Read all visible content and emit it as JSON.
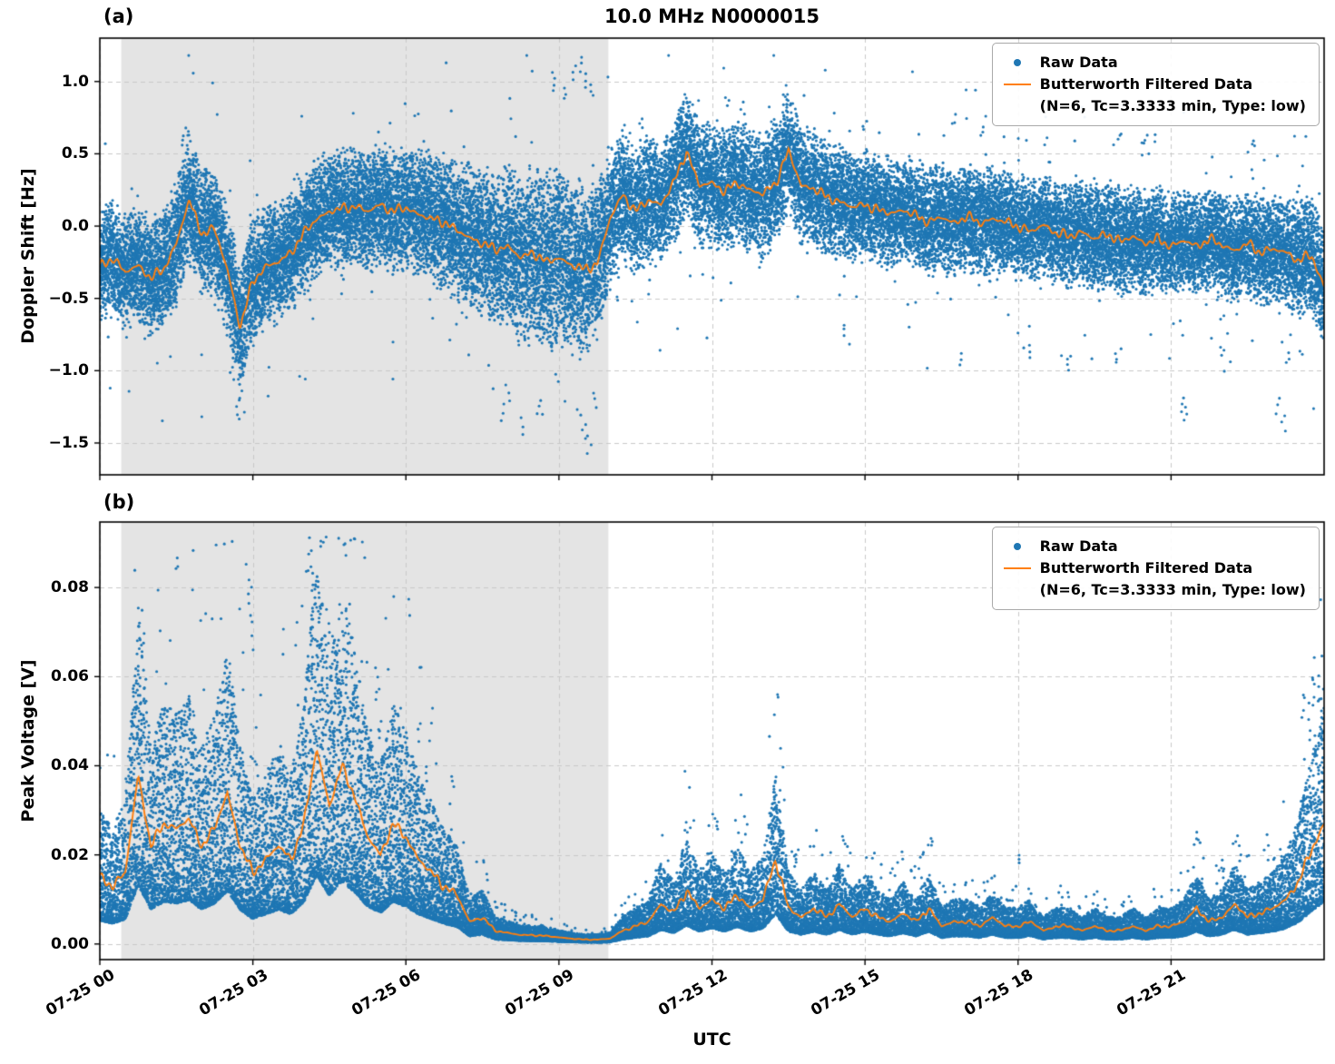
{
  "figure": {
    "title": "10.0 MHz N0000015",
    "xlabel": "UTC",
    "panel_a_label": "(a)",
    "panel_b_label": "(b)",
    "legend": {
      "raw_label": "Raw Data",
      "filtered_label": "Butterworth Filtered Data",
      "filtered_sublabel": "(N=6, Tc=3.3333 min, Type: low)"
    },
    "colors": {
      "raw": "#1f77b4",
      "filtered": "#ff7f0e",
      "shade": "#e4e4e4",
      "grid": "#c9c9c9",
      "axis": "#000000"
    },
    "x_ticks": [
      {
        "hour": 0,
        "label": "07-25 00"
      },
      {
        "hour": 3,
        "label": "07-25 03"
      },
      {
        "hour": 6,
        "label": "07-25 06"
      },
      {
        "hour": 9,
        "label": "07-25 09"
      },
      {
        "hour": 12,
        "label": "07-25 12"
      },
      {
        "hour": 15,
        "label": "07-25 15"
      },
      {
        "hour": 18,
        "label": "07-25 18"
      },
      {
        "hour": 21,
        "label": "07-25 21"
      }
    ]
  },
  "chart_data": [
    {
      "type": "scatter",
      "panel": "a",
      "title": "10.0 MHz N0000015",
      "xlabel": "UTC",
      "ylabel": "Doppler Shift [Hz]",
      "xlim_hours": [
        0,
        24
      ],
      "ylim": [
        -1.72,
        1.3
      ],
      "yticks": [
        {
          "value": 1.0,
          "label": "1.0"
        },
        {
          "value": 0.5,
          "label": "0.5"
        },
        {
          "value": 0.0,
          "label": "0.0"
        },
        {
          "value": -0.5,
          "label": "−0.5"
        },
        {
          "value": -1.0,
          "label": "−1.0"
        },
        {
          "value": -1.5,
          "label": "−1.5"
        }
      ],
      "grid": true,
      "legend_position": "upper right",
      "shade_span_hours": [
        0.42,
        9.97
      ],
      "noise_model": "symmetric",
      "raw_point_count": 36000,
      "line_wiggle_amp": 0.045,
      "series": [
        {
          "name": "Raw Data",
          "type": "scatter",
          "color": "#1f77b4"
        },
        {
          "name": "Butterworth Filtered Data (N=6, Tc=3.3333 min, Type: low)",
          "type": "line",
          "color": "#ff7f0e"
        }
      ],
      "filtered_points_hour_hz": [
        [
          0,
          -0.28
        ],
        [
          0.25,
          -0.22
        ],
        [
          0.5,
          -0.32
        ],
        [
          0.75,
          -0.27
        ],
        [
          1,
          -0.36
        ],
        [
          1.25,
          -0.3
        ],
        [
          1.5,
          -0.12
        ],
        [
          1.75,
          0.18
        ],
        [
          2,
          -0.05
        ],
        [
          2.25,
          -0.02
        ],
        [
          2.5,
          -0.3
        ],
        [
          2.75,
          -0.7
        ],
        [
          3,
          -0.38
        ],
        [
          3.25,
          -0.28
        ],
        [
          3.5,
          -0.25
        ],
        [
          3.75,
          -0.18
        ],
        [
          4,
          -0.05
        ],
        [
          4.25,
          0.05
        ],
        [
          4.5,
          0.1
        ],
        [
          4.75,
          0.12
        ],
        [
          5,
          0.14
        ],
        [
          5.25,
          0.1
        ],
        [
          5.5,
          0.15
        ],
        [
          5.75,
          0.1
        ],
        [
          6,
          0.13
        ],
        [
          6.25,
          0.08
        ],
        [
          6.5,
          0.05
        ],
        [
          6.75,
          0.03
        ],
        [
          7,
          -0.03
        ],
        [
          7.25,
          -0.08
        ],
        [
          7.5,
          -0.12
        ],
        [
          7.75,
          -0.16
        ],
        [
          8,
          -0.14
        ],
        [
          8.25,
          -0.22
        ],
        [
          8.5,
          -0.18
        ],
        [
          8.75,
          -0.25
        ],
        [
          9,
          -0.22
        ],
        [
          9.25,
          -0.27
        ],
        [
          9.5,
          -0.3
        ],
        [
          9.75,
          -0.26
        ],
        [
          10,
          0.05
        ],
        [
          10.25,
          0.22
        ],
        [
          10.5,
          0.1
        ],
        [
          10.75,
          0.18
        ],
        [
          11,
          0.15
        ],
        [
          11.25,
          0.3
        ],
        [
          11.5,
          0.52
        ],
        [
          11.75,
          0.28
        ],
        [
          12,
          0.3
        ],
        [
          12.25,
          0.24
        ],
        [
          12.5,
          0.3
        ],
        [
          12.75,
          0.25
        ],
        [
          13,
          0.22
        ],
        [
          13.25,
          0.3
        ],
        [
          13.5,
          0.52
        ],
        [
          13.75,
          0.28
        ],
        [
          14,
          0.26
        ],
        [
          14.25,
          0.2
        ],
        [
          14.5,
          0.17
        ],
        [
          14.75,
          0.13
        ],
        [
          15,
          0.15
        ],
        [
          15.25,
          0.11
        ],
        [
          15.5,
          0.09
        ],
        [
          15.75,
          0.11
        ],
        [
          16,
          0.07
        ],
        [
          16.25,
          0.03
        ],
        [
          16.5,
          0.06
        ],
        [
          16.75,
          0.02
        ],
        [
          17,
          0.07
        ],
        [
          17.25,
          0.02
        ],
        [
          17.5,
          0.05
        ],
        [
          17.75,
          0.03
        ],
        [
          18,
          0
        ],
        [
          18.25,
          -0.04
        ],
        [
          18.5,
          0.01
        ],
        [
          18.75,
          -0.05
        ],
        [
          19,
          -0.07
        ],
        [
          19.25,
          -0.04
        ],
        [
          19.5,
          -0.09
        ],
        [
          19.75,
          -0.05
        ],
        [
          20,
          -0.11
        ],
        [
          20.25,
          -0.07
        ],
        [
          20.5,
          -0.12
        ],
        [
          20.75,
          -0.09
        ],
        [
          21,
          -0.14
        ],
        [
          21.25,
          -0.1
        ],
        [
          21.5,
          -0.14
        ],
        [
          21.75,
          -0.09
        ],
        [
          22,
          -0.13
        ],
        [
          22.25,
          -0.17
        ],
        [
          22.5,
          -0.12
        ],
        [
          22.75,
          -0.18
        ],
        [
          23,
          -0.16
        ],
        [
          23.25,
          -0.18
        ],
        [
          23.5,
          -0.24
        ],
        [
          23.75,
          -0.2
        ],
        [
          24,
          -0.42
        ]
      ],
      "raw_band_halfwidth_hour_hz": [
        [
          0,
          0.35
        ],
        [
          1,
          0.38
        ],
        [
          2,
          0.42
        ],
        [
          3,
          0.4
        ],
        [
          4,
          0.38
        ],
        [
          5,
          0.38
        ],
        [
          6,
          0.4
        ],
        [
          7,
          0.45
        ],
        [
          8,
          0.52
        ],
        [
          9,
          0.6
        ],
        [
          10,
          0.45
        ],
        [
          11,
          0.4
        ],
        [
          12,
          0.4
        ],
        [
          13,
          0.4
        ],
        [
          14,
          0.38
        ],
        [
          15,
          0.35
        ],
        [
          16,
          0.35
        ],
        [
          17,
          0.35
        ],
        [
          18,
          0.33
        ],
        [
          19,
          0.33
        ],
        [
          20,
          0.35
        ],
        [
          21,
          0.33
        ],
        [
          22,
          0.33
        ],
        [
          23,
          0.35
        ],
        [
          24,
          0.38
        ]
      ],
      "raw_outliers_hour_hz": [
        [
          1.65,
          0.62
        ],
        [
          1.7,
          0.68
        ],
        [
          2.6,
          -1.05
        ],
        [
          2.7,
          -1.3
        ],
        [
          2.75,
          -1.18
        ],
        [
          2.8,
          -0.95
        ],
        [
          7.9,
          -1.35
        ],
        [
          8.0,
          -1.2
        ],
        [
          8.3,
          -1.45
        ],
        [
          8.6,
          -1.3
        ],
        [
          8.9,
          1.02
        ],
        [
          9.1,
          0.95
        ],
        [
          9.3,
          1.1
        ],
        [
          9.45,
          1.17
        ],
        [
          9.5,
          -1.48
        ],
        [
          9.55,
          1.05
        ],
        [
          9.6,
          -1.57
        ],
        [
          9.65,
          0.98
        ],
        [
          9.7,
          -1.25
        ],
        [
          10.6,
          0.75
        ],
        [
          11.4,
          0.85
        ],
        [
          12.3,
          0.9
        ],
        [
          12.6,
          0.85
        ],
        [
          13.4,
          0.92
        ],
        [
          13.5,
          0.88
        ],
        [
          14.6,
          -0.75
        ],
        [
          15.0,
          0.72
        ],
        [
          16.9,
          -0.95
        ],
        [
          17.3,
          0.68
        ],
        [
          18.2,
          -0.9
        ],
        [
          19.0,
          -1.0
        ],
        [
          19.9,
          -0.95
        ],
        [
          20.0,
          0.65
        ],
        [
          20.5,
          0.63
        ],
        [
          21.2,
          -1.28
        ],
        [
          21.3,
          -1.35
        ],
        [
          22.0,
          -0.9
        ],
        [
          22.6,
          0.6
        ],
        [
          23.1,
          -1.3
        ],
        [
          23.2,
          -1.42
        ],
        [
          23.3,
          -0.95
        ]
      ]
    },
    {
      "type": "scatter",
      "panel": "b",
      "xlabel": "UTC",
      "ylabel": "Peak Voltage [V]",
      "xlim_hours": [
        0,
        24
      ],
      "ylim": [
        -0.0035,
        0.0947
      ],
      "yticks": [
        {
          "value": 0.08,
          "label": "0.08"
        },
        {
          "value": 0.06,
          "label": "0.06"
        },
        {
          "value": 0.04,
          "label": "0.04"
        },
        {
          "value": 0.02,
          "label": "0.02"
        },
        {
          "value": 0.0,
          "label": "0.00"
        }
      ],
      "grid": true,
      "legend_position": "upper right",
      "shade_span_hours": [
        0.42,
        9.97
      ],
      "noise_model": "positive",
      "raw_point_count": 30000,
      "line_wiggle_amp": 0.0014,
      "series": [
        {
          "name": "Raw Data",
          "type": "scatter",
          "color": "#1f77b4"
        },
        {
          "name": "Butterworth Filtered Data (N=6, Tc=3.3333 min, Type: low)",
          "type": "line",
          "color": "#ff7f0e"
        }
      ],
      "filtered_points_hour_volts": [
        [
          0,
          0.015
        ],
        [
          0.25,
          0.013
        ],
        [
          0.5,
          0.016
        ],
        [
          0.75,
          0.038
        ],
        [
          1,
          0.022
        ],
        [
          1.25,
          0.027
        ],
        [
          1.5,
          0.026
        ],
        [
          1.75,
          0.028
        ],
        [
          2,
          0.022
        ],
        [
          2.25,
          0.026
        ],
        [
          2.5,
          0.034
        ],
        [
          2.75,
          0.022
        ],
        [
          3,
          0.016
        ],
        [
          3.25,
          0.019
        ],
        [
          3.5,
          0.022
        ],
        [
          3.75,
          0.019
        ],
        [
          4,
          0.027
        ],
        [
          4.25,
          0.044
        ],
        [
          4.5,
          0.031
        ],
        [
          4.75,
          0.04
        ],
        [
          5,
          0.033
        ],
        [
          5.25,
          0.024
        ],
        [
          5.5,
          0.02
        ],
        [
          5.75,
          0.027
        ],
        [
          6,
          0.024
        ],
        [
          6.25,
          0.019
        ],
        [
          6.5,
          0.016
        ],
        [
          6.75,
          0.013
        ],
        [
          7,
          0.011
        ],
        [
          7.25,
          0.005
        ],
        [
          7.5,
          0.006
        ],
        [
          7.75,
          0.003
        ],
        [
          8,
          0.0025
        ],
        [
          8.25,
          0.002
        ],
        [
          8.5,
          0.002
        ],
        [
          8.75,
          0.0018
        ],
        [
          9,
          0.0015
        ],
        [
          9.25,
          0.0012
        ],
        [
          9.5,
          0.001
        ],
        [
          9.75,
          0.001
        ],
        [
          10,
          0.0012
        ],
        [
          10.25,
          0.003
        ],
        [
          10.5,
          0.004
        ],
        [
          10.75,
          0.005
        ],
        [
          11,
          0.009
        ],
        [
          11.25,
          0.007
        ],
        [
          11.5,
          0.012
        ],
        [
          11.75,
          0.008
        ],
        [
          12,
          0.01
        ],
        [
          12.25,
          0.008
        ],
        [
          12.5,
          0.011
        ],
        [
          12.75,
          0.008
        ],
        [
          13,
          0.01
        ],
        [
          13.25,
          0.019
        ],
        [
          13.5,
          0.008
        ],
        [
          13.75,
          0.006
        ],
        [
          14,
          0.008
        ],
        [
          14.25,
          0.006
        ],
        [
          14.5,
          0.009
        ],
        [
          14.75,
          0.006
        ],
        [
          15,
          0.008
        ],
        [
          15.25,
          0.006
        ],
        [
          15.5,
          0.005
        ],
        [
          15.75,
          0.007
        ],
        [
          16,
          0.005
        ],
        [
          16.25,
          0.008
        ],
        [
          16.5,
          0.004
        ],
        [
          16.75,
          0.005
        ],
        [
          17,
          0.005
        ],
        [
          17.25,
          0.004
        ],
        [
          17.5,
          0.006
        ],
        [
          17.75,
          0.004
        ],
        [
          18,
          0.004
        ],
        [
          18.25,
          0.005
        ],
        [
          18.5,
          0.003
        ],
        [
          18.75,
          0.004
        ],
        [
          19,
          0.004
        ],
        [
          19.25,
          0.003
        ],
        [
          19.5,
          0.004
        ],
        [
          19.75,
          0.003
        ],
        [
          20,
          0.003
        ],
        [
          20.25,
          0.004
        ],
        [
          20.5,
          0.003
        ],
        [
          20.75,
          0.004
        ],
        [
          21,
          0.004
        ],
        [
          21.25,
          0.005
        ],
        [
          21.5,
          0.008
        ],
        [
          21.75,
          0.005
        ],
        [
          22,
          0.006
        ],
        [
          22.25,
          0.009
        ],
        [
          22.5,
          0.006
        ],
        [
          22.75,
          0.007
        ],
        [
          23,
          0.008
        ],
        [
          23.25,
          0.01
        ],
        [
          23.5,
          0.014
        ],
        [
          23.75,
          0.021
        ],
        [
          24,
          0.027
        ]
      ],
      "raw_outliers_hour_volts": [
        [
          0.8,
          0.075
        ],
        [
          0.85,
          0.07
        ],
        [
          2.5,
          0.062
        ],
        [
          2.55,
          0.058
        ],
        [
          2.9,
          0.085
        ],
        [
          2.95,
          0.08
        ],
        [
          3.0,
          0.072
        ],
        [
          4.1,
          0.091
        ],
        [
          4.15,
          0.088
        ],
        [
          4.2,
          0.083
        ],
        [
          4.45,
          0.075
        ],
        [
          4.5,
          0.07
        ],
        [
          4.6,
          0.069
        ],
        [
          4.65,
          0.065
        ],
        [
          5.0,
          0.058
        ],
        [
          5.05,
          0.055
        ],
        [
          5.5,
          0.05
        ],
        [
          6.4,
          0.04
        ],
        [
          6.9,
          0.038
        ],
        [
          11.5,
          0.027
        ],
        [
          12.1,
          0.028
        ],
        [
          13.2,
          0.033
        ],
        [
          13.25,
          0.03
        ],
        [
          14.6,
          0.024
        ],
        [
          16.3,
          0.024
        ],
        [
          18.0,
          0.02
        ],
        [
          21.5,
          0.025
        ],
        [
          22.3,
          0.024
        ],
        [
          23.6,
          0.055
        ],
        [
          23.7,
          0.05
        ],
        [
          23.8,
          0.058
        ],
        [
          23.9,
          0.06
        ],
        [
          23.95,
          0.057
        ]
      ]
    }
  ]
}
